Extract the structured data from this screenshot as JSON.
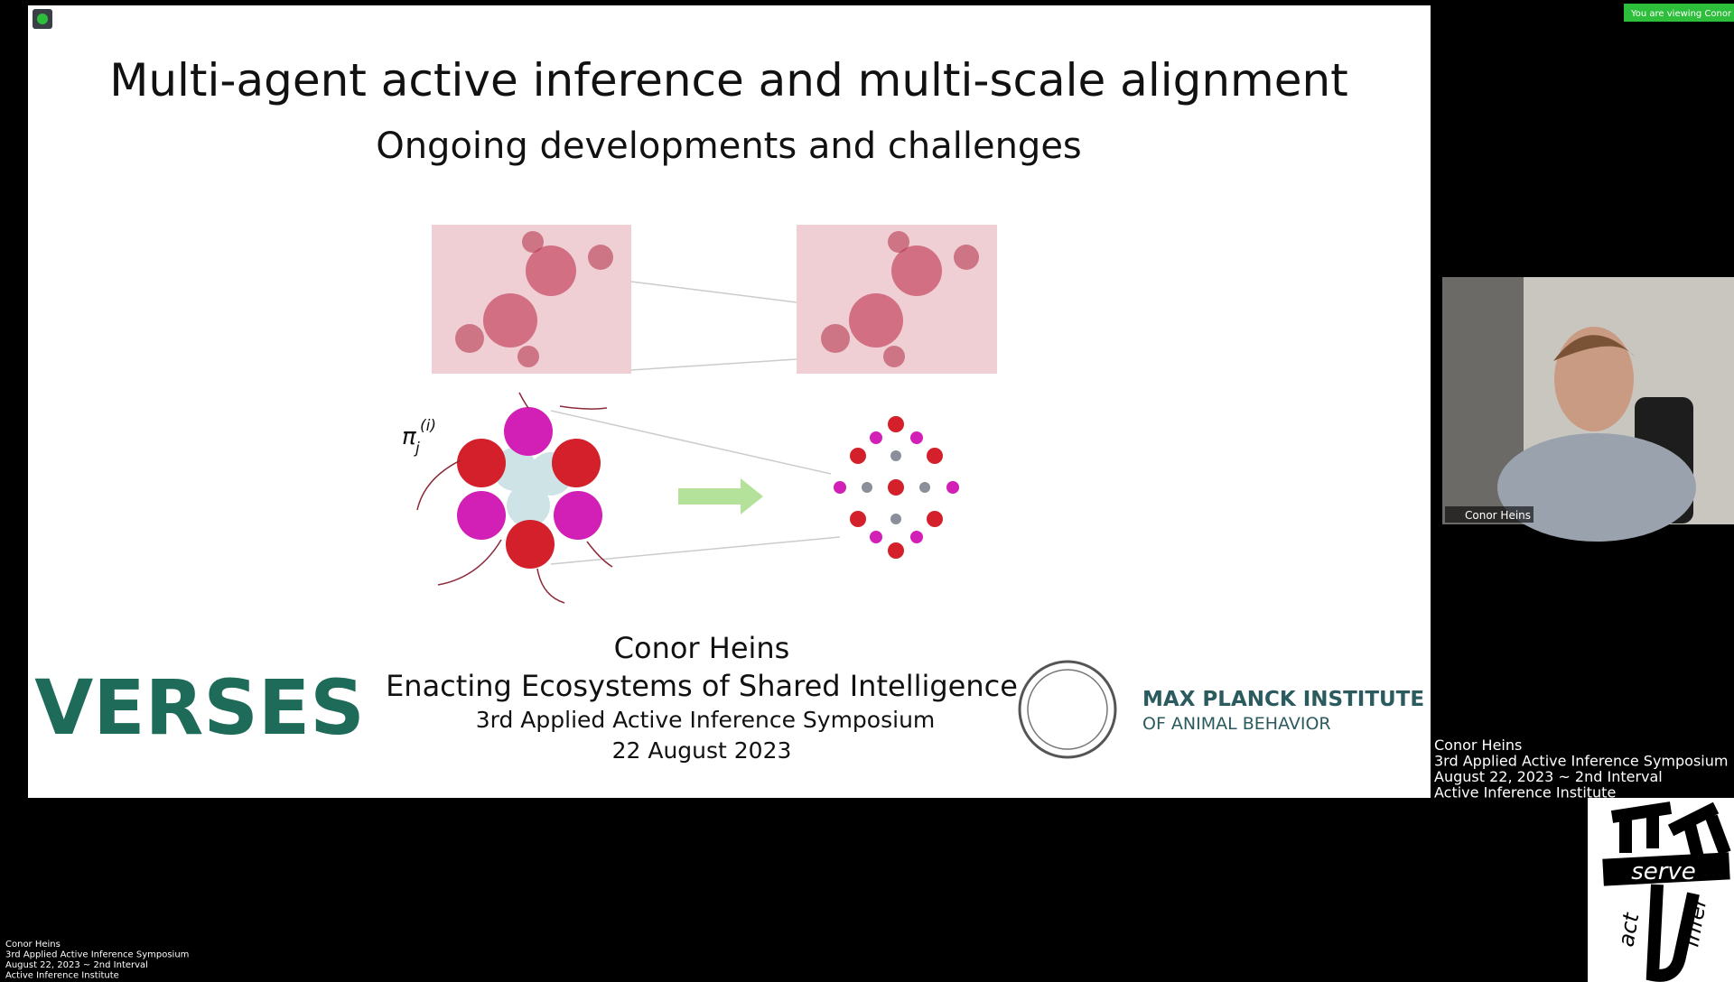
{
  "banner": "You are viewing Conor '",
  "slide": {
    "title": "Multi-agent active inference and multi-scale alignment",
    "subtitle": "Ongoing developments and challenges",
    "math_label": {
      "symbol": "π",
      "sub": "j",
      "sup": "(i)"
    },
    "speaker": "Conor Heins",
    "talk_title": "Enacting Ecosystems of Shared Intelligence",
    "event": "3rd Applied Active Inference Symposium",
    "date": "22 August 2023",
    "left_logo": "VERSES",
    "right_logo": {
      "line1": "MAX PLANCK INSTITUTE",
      "line2": "OF ANIMAL BEHAVIOR"
    }
  },
  "video": {
    "name_tag": "Conor Heins"
  },
  "right_caption": [
    "Conor Heins",
    "3rd Applied Active Inference Symposium",
    "August 22, 2023 ~ 2nd Interval",
    "Active Inference Institute"
  ],
  "corner_logo": {
    "top": "serve",
    "left": "act",
    "right": "infer"
  },
  "bottom_caption": [
    "Conor Heins",
    "3rd Applied Active Inference Symposium",
    "August 22, 2023 ~ 2nd Interval",
    "Active Inference Institute"
  ]
}
